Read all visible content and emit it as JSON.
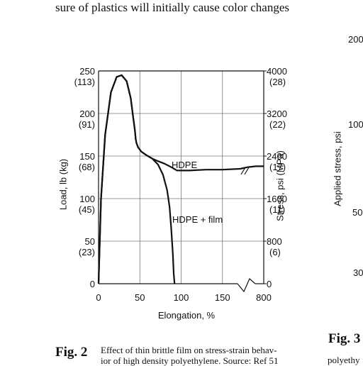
{
  "header_text": "sure of plastics will initially cause color changes",
  "left_axis": {
    "label": "Load, lb (kg)",
    "ticks": [
      {
        "lb": "250",
        "kg": "(113)"
      },
      {
        "lb": "200",
        "kg": "(91)"
      },
      {
        "lb": "150",
        "kg": "(68)"
      },
      {
        "lb": "100",
        "kg": "(45)"
      },
      {
        "lb": "50",
        "kg": "(23)"
      },
      {
        "lb": "0",
        "kg": ""
      }
    ]
  },
  "right_axis": {
    "label": "Stress, psi (MPa)",
    "ticks": [
      {
        "psi": "4000",
        "mpa": "(28)"
      },
      {
        "psi": "3200",
        "mpa": "(22)"
      },
      {
        "psi": "2400",
        "mpa": "(17)"
      },
      {
        "psi": "1600",
        "mpa": "(11)"
      },
      {
        "psi": "800",
        "mpa": "(6)"
      },
      {
        "psi": "0",
        "mpa": ""
      }
    ]
  },
  "x_axis": {
    "label": "Elongation, %",
    "ticks": [
      "0",
      "50",
      "100",
      "150",
      "800"
    ]
  },
  "curve_labels": {
    "hdpe": "HDPE",
    "hdpe_film": "HDPE + film"
  },
  "figure2": {
    "label": "Fig. 2",
    "caption_line1": "Effect of thin brittle film on stress-strain behav-",
    "caption_line2": "ior of high density polyethylene. Source: Ref 51"
  },
  "figure3": {
    "label": "Fig. 3",
    "ylabel": "Applied stress, psi",
    "edge_numbers": [
      "200",
      "100",
      "50",
      "30"
    ],
    "caption_fragment": "polyethy"
  },
  "chart_data": {
    "type": "line",
    "xlabel": "Elongation, %",
    "ylabel": "Load, lb (kg)",
    "y2label": "Stress, psi (MPa)",
    "xlim": [
      0,
      800
    ],
    "ylim": [
      0,
      250
    ],
    "x_ticks": [
      0,
      50,
      100,
      150,
      800
    ],
    "y_ticks": [
      0,
      50,
      100,
      150,
      200,
      250
    ],
    "y2_ticks": [
      0,
      800,
      1600,
      2400,
      3200,
      4000
    ],
    "x_axis_break": true,
    "grid": true,
    "series": [
      {
        "name": "HDPE",
        "x": [
          0,
          3,
          8,
          15,
          22,
          28,
          34,
          39,
          42,
          44,
          45,
          46,
          48,
          52,
          58,
          65,
          72,
          80,
          88,
          95,
          110,
          130,
          150,
          200,
          400,
          600,
          800
        ],
        "y": [
          0,
          100,
          175,
          225,
          243,
          245,
          238,
          218,
          195,
          180,
          170,
          165,
          160,
          155,
          151,
          147,
          144,
          141,
          137,
          133,
          133,
          134,
          134,
          135,
          137,
          138,
          138
        ]
      },
      {
        "name": "HDPE + film",
        "x": [
          0,
          3,
          8,
          15,
          22,
          28,
          34,
          39,
          42,
          44,
          45,
          46,
          48,
          52,
          58,
          65,
          72,
          78,
          83,
          86,
          88,
          90,
          91,
          92
        ],
        "y": [
          0,
          100,
          175,
          225,
          243,
          245,
          238,
          218,
          195,
          180,
          170,
          165,
          160,
          155,
          151,
          147,
          140,
          128,
          110,
          90,
          65,
          35,
          12,
          0
        ]
      }
    ]
  }
}
